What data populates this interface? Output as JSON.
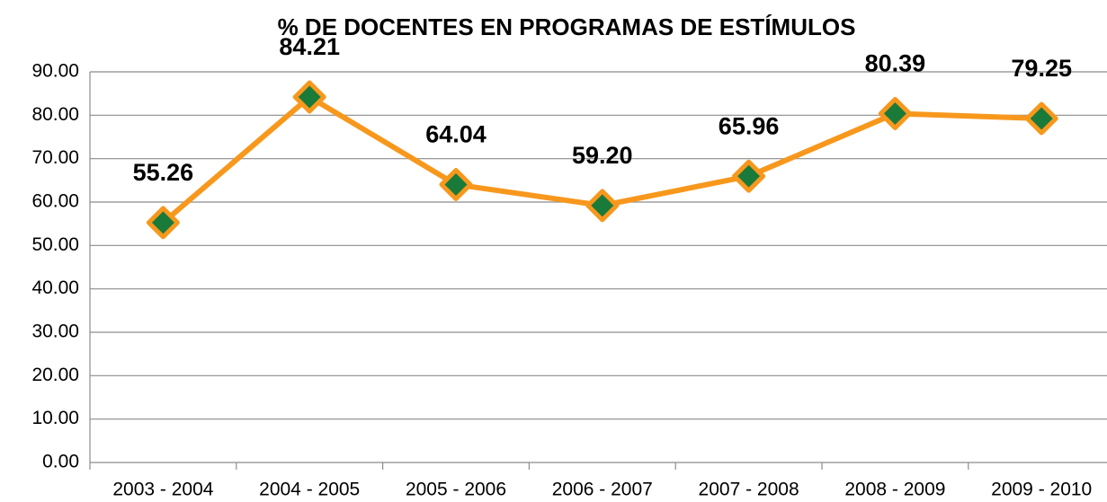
{
  "chart_data": {
    "type": "line",
    "title": "% DE DOCENTES EN PROGRAMAS DE ESTÍMULOS",
    "categories": [
      "2003 - 2004",
      "2004 - 2005",
      "2005 - 2006",
      "2006 - 2007",
      "2007 - 2008",
      "2008 - 2009",
      "2009 - 2010"
    ],
    "values": [
      55.26,
      84.21,
      64.04,
      59.2,
      65.96,
      80.39,
      79.25
    ],
    "value_labels": [
      "55.26",
      "84.21",
      "64.04",
      "59.20",
      "65.96",
      "80.39",
      "79.25"
    ],
    "color": "#f7981d",
    "marker_color": "#1a7a3a",
    "ylim": [
      0,
      90
    ],
    "yticks": [
      {
        "value": 0,
        "label": "0.00"
      },
      {
        "value": 10,
        "label": "10.00"
      },
      {
        "value": 20,
        "label": "20.00"
      },
      {
        "value": 30,
        "label": "30.00"
      },
      {
        "value": 40,
        "label": "40.00"
      },
      {
        "value": 50,
        "label": "50.00"
      },
      {
        "value": 60,
        "label": "60.00"
      },
      {
        "value": 70,
        "label": "70.00"
      },
      {
        "value": 80,
        "label": "80.00"
      },
      {
        "value": 90,
        "label": "90.00"
      }
    ],
    "grid": true
  }
}
